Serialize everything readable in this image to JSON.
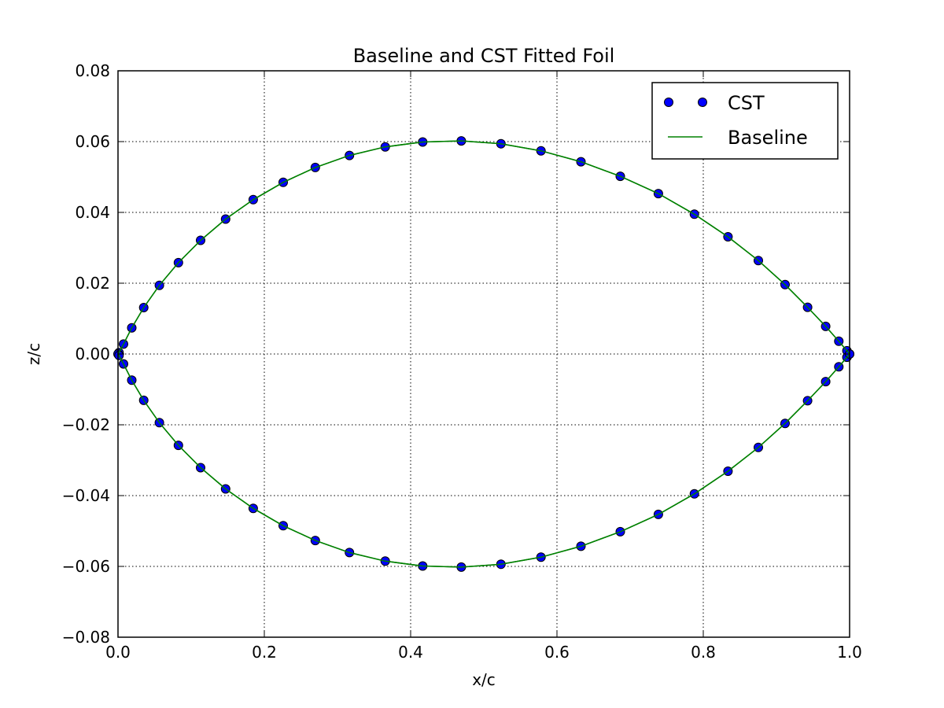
{
  "chart_data": {
    "type": "scatter",
    "title": "Baseline and CST Fitted Foil",
    "xlabel": "x/c",
    "ylabel": "z/c",
    "xlim": [
      0.0,
      1.0
    ],
    "ylim": [
      -0.08,
      0.08
    ],
    "x_ticks": [
      0.0,
      0.2,
      0.4,
      0.6,
      0.8,
      1.0
    ],
    "x_tick_labels": [
      "0.0",
      "0.2",
      "0.4",
      "0.6",
      "0.8",
      "1.0"
    ],
    "y_ticks": [
      -0.08,
      -0.06,
      -0.04,
      -0.02,
      0.0,
      0.02,
      0.04,
      0.06,
      0.08
    ],
    "y_tick_labels": [
      "−0.08",
      "−0.06",
      "−0.04",
      "−0.02",
      "0.00",
      "0.02",
      "0.04",
      "0.06",
      "0.08"
    ],
    "grid": true,
    "legend_position": "top-right",
    "series": [
      {
        "name": "CST",
        "kind": "markers",
        "color": "#0000ff",
        "edge_color": "#000000",
        "x": [
          1.0,
          0.9963,
          0.9853,
          0.9673,
          0.9426,
          0.9118,
          0.8753,
          0.8338,
          0.7879,
          0.7386,
          0.6866,
          0.6328,
          0.5782,
          0.5234,
          0.4693,
          0.4165,
          0.3653,
          0.3163,
          0.2697,
          0.2258,
          0.1848,
          0.1471,
          0.1129,
          0.0826,
          0.0566,
          0.0352,
          0.0188,
          0.0075,
          0.0014,
          0.0,
          0.0014,
          0.0075,
          0.0188,
          0.0352,
          0.0566,
          0.0826,
          0.1129,
          0.1471,
          0.1848,
          0.2258,
          0.2697,
          0.3163,
          0.3653,
          0.4165,
          0.4693,
          0.5234,
          0.5782,
          0.6328,
          0.6866,
          0.7386,
          0.7879,
          0.8338,
          0.8753,
          0.9118,
          0.9426,
          0.9673,
          0.9853,
          0.9963,
          1.0
        ],
        "y": [
          0.0,
          0.0009,
          0.0036,
          0.0078,
          0.0132,
          0.0196,
          0.0264,
          0.0331,
          0.0395,
          0.0453,
          0.0502,
          0.0543,
          0.0574,
          0.0594,
          0.0602,
          0.0599,
          0.0585,
          0.0561,
          0.0527,
          0.0485,
          0.0436,
          0.0381,
          0.0321,
          0.0258,
          0.0194,
          0.0131,
          0.0074,
          0.0028,
          0.0004,
          0.0,
          -0.0004,
          -0.0028,
          -0.0074,
          -0.0131,
          -0.0194,
          -0.0258,
          -0.0321,
          -0.0381,
          -0.0436,
          -0.0485,
          -0.0527,
          -0.0561,
          -0.0585,
          -0.0599,
          -0.0602,
          -0.0594,
          -0.0574,
          -0.0543,
          -0.0502,
          -0.0453,
          -0.0395,
          -0.0331,
          -0.0264,
          -0.0196,
          -0.0132,
          -0.0078,
          -0.0036,
          -0.0009,
          0.0
        ]
      },
      {
        "name": "Baseline",
        "kind": "line",
        "color": "#008000",
        "x": [
          1.0,
          0.9963,
          0.9853,
          0.9673,
          0.9426,
          0.9118,
          0.8753,
          0.8338,
          0.7879,
          0.7386,
          0.6866,
          0.6328,
          0.5782,
          0.5234,
          0.4693,
          0.4165,
          0.3653,
          0.3163,
          0.2697,
          0.2258,
          0.1848,
          0.1471,
          0.1129,
          0.0826,
          0.0566,
          0.0352,
          0.0188,
          0.0075,
          0.0014,
          0.0,
          0.0014,
          0.0075,
          0.0188,
          0.0352,
          0.0566,
          0.0826,
          0.1129,
          0.1471,
          0.1848,
          0.2258,
          0.2697,
          0.3163,
          0.3653,
          0.4165,
          0.4693,
          0.5234,
          0.5782,
          0.6328,
          0.6866,
          0.7386,
          0.7879,
          0.8338,
          0.8753,
          0.9118,
          0.9426,
          0.9673,
          0.9853,
          0.9963,
          1.0
        ],
        "y": [
          0.0,
          0.0009,
          0.0036,
          0.0078,
          0.0132,
          0.0196,
          0.0264,
          0.0331,
          0.0395,
          0.0453,
          0.0502,
          0.0543,
          0.0574,
          0.0594,
          0.0602,
          0.0599,
          0.0585,
          0.0561,
          0.0527,
          0.0485,
          0.0436,
          0.0381,
          0.0321,
          0.0258,
          0.0194,
          0.0131,
          0.0074,
          0.0028,
          0.0004,
          0.0,
          -0.0004,
          -0.0028,
          -0.0074,
          -0.0131,
          -0.0194,
          -0.0258,
          -0.0321,
          -0.0381,
          -0.0436,
          -0.0485,
          -0.0527,
          -0.0561,
          -0.0585,
          -0.0599,
          -0.0602,
          -0.0594,
          -0.0574,
          -0.0543,
          -0.0502,
          -0.0453,
          -0.0395,
          -0.0331,
          -0.0264,
          -0.0196,
          -0.0132,
          -0.0078,
          -0.0036,
          -0.0009,
          0.0
        ]
      }
    ]
  }
}
